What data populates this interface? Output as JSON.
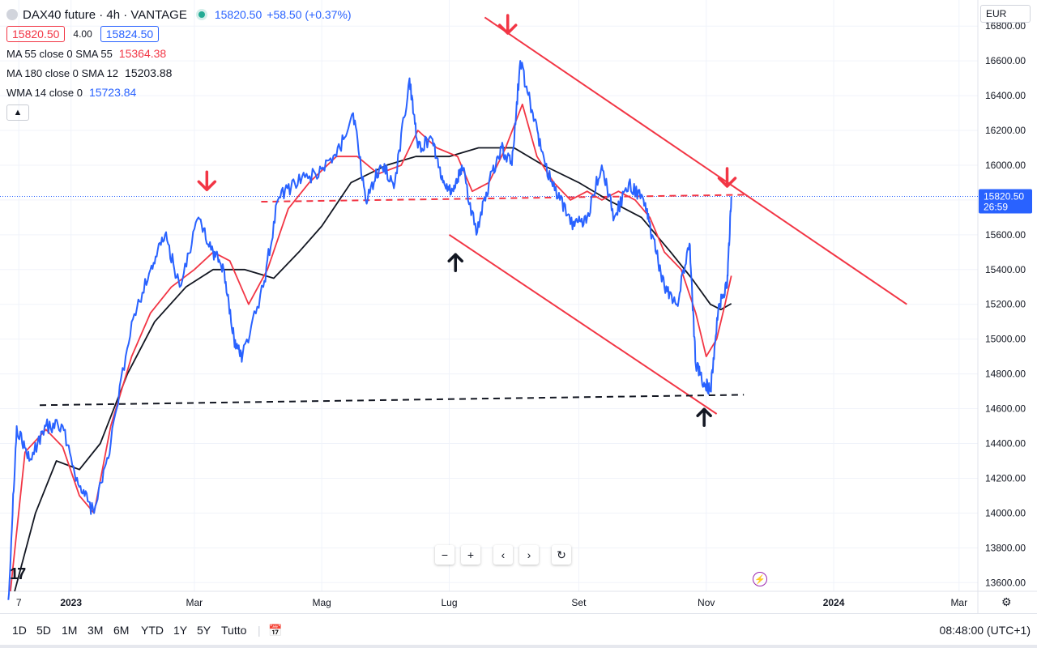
{
  "header": {
    "symbol_title": "DAX40 future · 4h · VANTAGE",
    "last_price": "15820.50",
    "change": "+58.50 (+0.37%)",
    "bid": "15820.50",
    "spread": "4.00",
    "ask": "15824.50"
  },
  "indicators": [
    {
      "name": "MA 55 close 0 SMA 55",
      "value": "15364.38",
      "color": "#f23645"
    },
    {
      "name": "MA 180 close 0 SMA 12",
      "value": "15203.88",
      "color": "#131722"
    },
    {
      "name": "WMA 14 close 0",
      "value": "15723.84",
      "color": "#2962ff"
    }
  ],
  "currency": "EUR",
  "price_label": {
    "price": "15820.50",
    "countdown": "26:59"
  },
  "timeframes": [
    "1D",
    "5D",
    "1M",
    "3M",
    "6M",
    "YTD",
    "1Y",
    "5Y",
    "Tutto"
  ],
  "clock": "08:48:00 (UTC+1)",
  "nav_icons": [
    "minus-icon",
    "plus-icon",
    "chevron-left-icon",
    "chevron-right-icon",
    "reset-icon"
  ],
  "chart_data": {
    "type": "line",
    "y_ticks": [
      13600,
      13800,
      14000,
      14200,
      14400,
      14600,
      14800,
      15000,
      15200,
      15400,
      15600,
      15800,
      16000,
      16200,
      16400,
      16600,
      16800
    ],
    "y_tick_labels": [
      "13600.00",
      "13800.00",
      "14000.00",
      "14200.00",
      "14400.00",
      "14600.00",
      "14800.00",
      "15000.00",
      "15200.00",
      "15400.00",
      "15600.00",
      "15800.00",
      "16000.00",
      "16200.00",
      "16400.00",
      "16600.00",
      "16800.00"
    ],
    "x_ticks": [
      {
        "date": "2022-12-07",
        "label": "7"
      },
      {
        "date": "2023-01-01",
        "label": "2023"
      },
      {
        "date": "2023-03-01",
        "label": "Mar"
      },
      {
        "date": "2023-05-01",
        "label": "Mag"
      },
      {
        "date": "2023-07-01",
        "label": "Lug"
      },
      {
        "date": "2023-09-01",
        "label": "Set"
      },
      {
        "date": "2023-11-01",
        "label": "Nov"
      },
      {
        "date": "2024-01-01",
        "label": "2024"
      },
      {
        "date": "2024-03-01",
        "label": "Mar"
      }
    ],
    "ylim": [
      13550,
      16950
    ],
    "xlim": [
      "2022-11-28",
      "2024-03-10"
    ],
    "grid": true,
    "series": [
      {
        "name": "WMA 14",
        "color": "#2962ff",
        "x": [
          "2022-12-02",
          "2022-12-06",
          "2022-12-12",
          "2022-12-20",
          "2022-12-28",
          "2023-01-05",
          "2023-01-12",
          "2023-01-20",
          "2023-01-30",
          "2023-02-08",
          "2023-02-15",
          "2023-02-22",
          "2023-03-03",
          "2023-03-10",
          "2023-03-15",
          "2023-03-20",
          "2023-03-24",
          "2023-04-03",
          "2023-04-10",
          "2023-04-18",
          "2023-04-28",
          "2023-05-08",
          "2023-05-16",
          "2023-05-22",
          "2023-05-29",
          "2023-06-05",
          "2023-06-12",
          "2023-06-16",
          "2023-06-23",
          "2023-06-28",
          "2023-07-03",
          "2023-07-07",
          "2023-07-14",
          "2023-07-20",
          "2023-07-26",
          "2023-07-31",
          "2023-08-04",
          "2023-08-10",
          "2023-08-16",
          "2023-08-23",
          "2023-08-30",
          "2023-09-05",
          "2023-09-12",
          "2023-09-18",
          "2023-09-25",
          "2023-10-02",
          "2023-10-06",
          "2023-10-12",
          "2023-10-18",
          "2023-10-24",
          "2023-10-27",
          "2023-10-31",
          "2023-11-03",
          "2023-11-07",
          "2023-11-11",
          "2023-11-13"
        ],
        "values": [
          13500,
          14500,
          14300,
          14500,
          14500,
          14150,
          14000,
          14400,
          15100,
          15400,
          15600,
          15300,
          15700,
          15500,
          15400,
          15000,
          14900,
          15300,
          15800,
          15900,
          15950,
          16050,
          16300,
          15800,
          16000,
          15900,
          16500,
          16100,
          16150,
          15900,
          15850,
          16000,
          15600,
          15900,
          16100,
          16000,
          16600,
          16300,
          16000,
          15800,
          15650,
          15700,
          16000,
          15700,
          15900,
          15800,
          15600,
          15300,
          15200,
          15550,
          14850,
          14750,
          14700,
          15200,
          15300,
          15820.5
        ]
      },
      {
        "name": "MA 55",
        "color": "#f23645",
        "x": [
          "2022-12-03",
          "2022-12-10",
          "2022-12-20",
          "2022-12-28",
          "2023-01-05",
          "2023-01-12",
          "2023-01-20",
          "2023-01-30",
          "2023-02-08",
          "2023-02-18",
          "2023-03-01",
          "2023-03-10",
          "2023-03-18",
          "2023-03-27",
          "2023-04-05",
          "2023-04-15",
          "2023-04-25",
          "2023-05-08",
          "2023-05-18",
          "2023-05-28",
          "2023-06-08",
          "2023-06-16",
          "2023-06-25",
          "2023-07-05",
          "2023-07-12",
          "2023-07-20",
          "2023-07-28",
          "2023-08-05",
          "2023-08-12",
          "2023-08-20",
          "2023-08-28",
          "2023-09-05",
          "2023-09-12",
          "2023-09-20",
          "2023-09-28",
          "2023-10-05",
          "2023-10-12",
          "2023-10-20",
          "2023-10-27",
          "2023-11-01",
          "2023-11-06",
          "2023-11-10",
          "2023-11-13"
        ],
        "values": [
          13550,
          14350,
          14480,
          14380,
          14100,
          14000,
          14500,
          14900,
          15150,
          15300,
          15400,
          15500,
          15450,
          15200,
          15400,
          15750,
          15900,
          16050,
          16050,
          15950,
          16000,
          16200,
          16100,
          16050,
          15850,
          15900,
          16100,
          16350,
          16050,
          15900,
          15800,
          15850,
          15800,
          15850,
          15800,
          15700,
          15500,
          15400,
          15150,
          14900,
          15000,
          15200,
          15364.38
        ]
      },
      {
        "name": "MA 180",
        "color": "#131722",
        "x": [
          "2022-12-05",
          "2022-12-15",
          "2022-12-25",
          "2023-01-05",
          "2023-01-15",
          "2023-01-28",
          "2023-02-10",
          "2023-02-25",
          "2023-03-10",
          "2023-03-25",
          "2023-04-08",
          "2023-04-20",
          "2023-05-01",
          "2023-05-15",
          "2023-06-01",
          "2023-06-15",
          "2023-07-01",
          "2023-07-15",
          "2023-08-01",
          "2023-08-15",
          "2023-09-01",
          "2023-09-15",
          "2023-10-01",
          "2023-10-15",
          "2023-10-25",
          "2023-11-03",
          "2023-11-08",
          "2023-11-13"
        ],
        "values": [
          13550,
          14000,
          14300,
          14250,
          14400,
          14800,
          15100,
          15300,
          15400,
          15400,
          15350,
          15500,
          15650,
          15900,
          16000,
          16050,
          16050,
          16100,
          16100,
          16000,
          15900,
          15800,
          15700,
          15500,
          15350,
          15200,
          15170,
          15203.88
        ]
      }
    ],
    "annotation_lines": [
      {
        "name": "upper-resistance",
        "style": "solid",
        "color": "#f23645",
        "x": [
          "2023-07-18",
          "2024-02-05"
        ],
        "values": [
          16850,
          15200
        ]
      },
      {
        "name": "lower-channel",
        "style": "solid",
        "color": "#f23645",
        "x": [
          "2023-07-01",
          "2023-11-06"
        ],
        "values": [
          15600,
          14570
        ]
      },
      {
        "name": "horizontal-resistance",
        "style": "dashed",
        "color": "#f23645",
        "x": [
          "2023-04-02",
          "2023-11-19"
        ],
        "values": [
          15790,
          15830
        ]
      },
      {
        "name": "horizontal-support",
        "style": "dashed",
        "color": "#131722",
        "x": [
          "2022-12-17",
          "2023-11-19"
        ],
        "values": [
          14620,
          14680
        ]
      }
    ],
    "arrows": [
      {
        "direction": "down",
        "color": "#f23645",
        "x": "2023-03-07",
        "y": 15910
      },
      {
        "direction": "down",
        "color": "#f23645",
        "x": "2023-07-29",
        "y": 16810
      },
      {
        "direction": "down",
        "color": "#f23645",
        "x": "2023-11-11",
        "y": 15930
      },
      {
        "direction": "up",
        "color": "#131722",
        "x": "2023-07-04",
        "y": 15440
      },
      {
        "direction": "up",
        "color": "#131722",
        "x": "2023-10-31",
        "y": 14550
      }
    ]
  }
}
